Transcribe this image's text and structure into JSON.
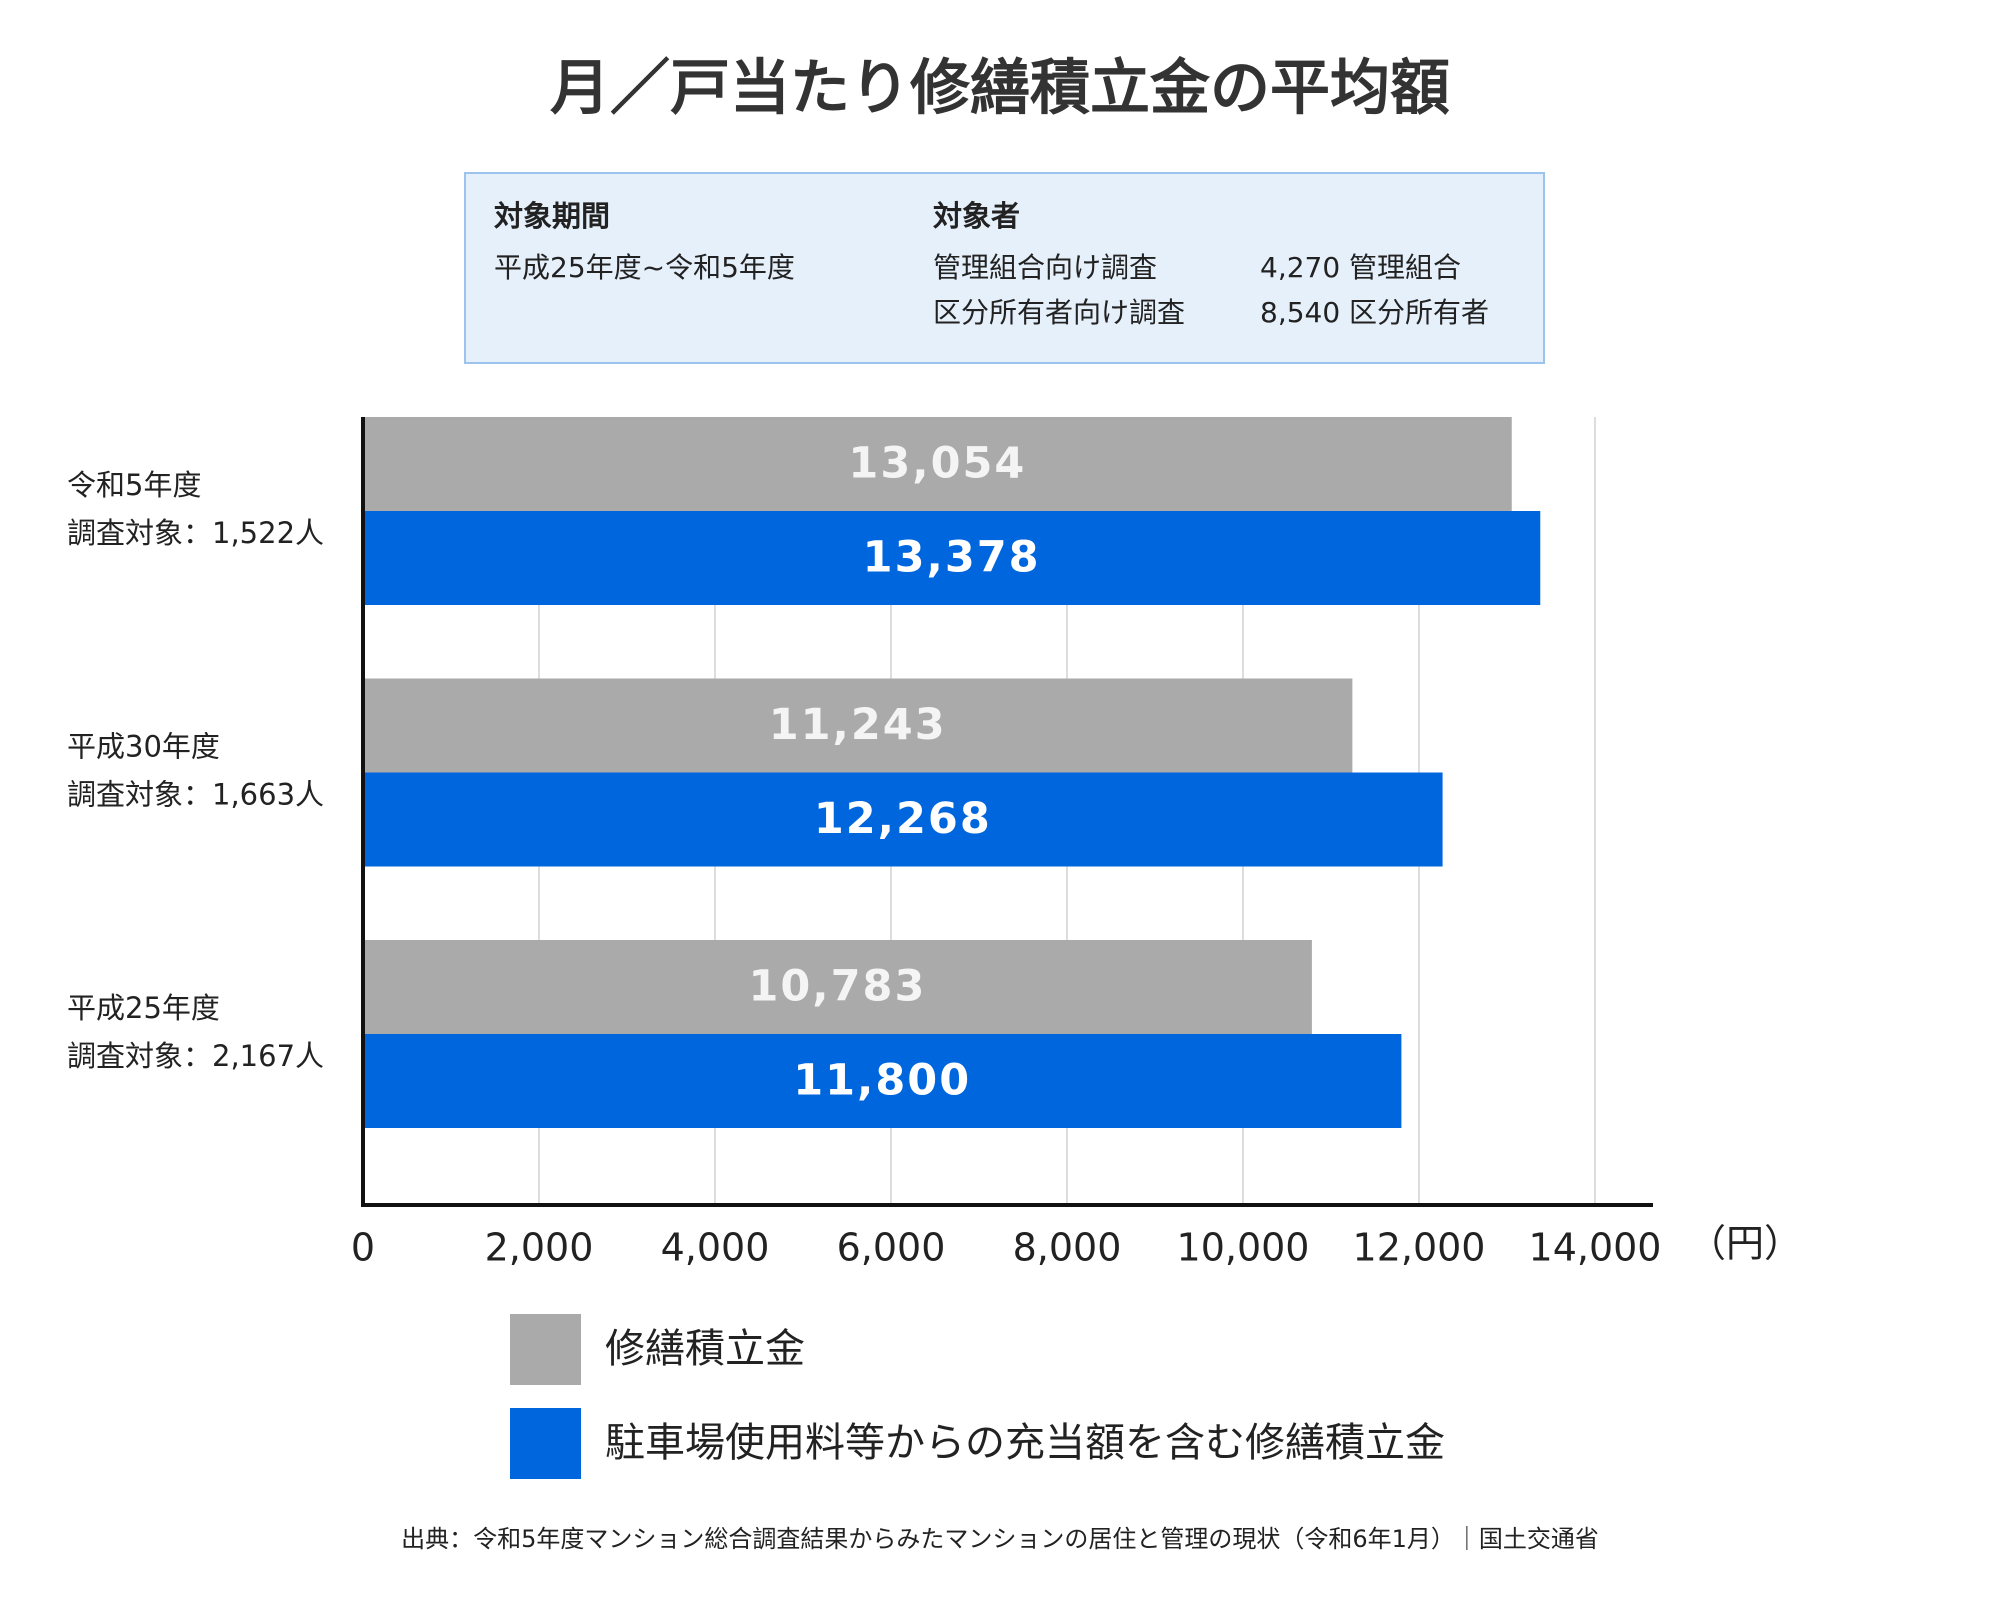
{
  "chart_data": {
    "type": "hbar",
    "title": "月／戸当たり修繕積立金の平均額",
    "info_box": {
      "period_heading": "対象期間",
      "period": "平成25年度~令和5年度",
      "target_heading": "対象者",
      "targets": [
        {
          "survey": "管理組合向け調査",
          "count": "4,270 管理組合"
        },
        {
          "survey": "区分所有者向け調査",
          "count": "8,540 区分所有者"
        }
      ]
    },
    "categories": [
      "令和5年度",
      "平成30年度",
      "平成25年度"
    ],
    "category_notes": [
      "調査対象：1,522人",
      "調査対象：1,663人",
      "調査対象：2,167人"
    ],
    "series": [
      {
        "name": "修繕積立金",
        "color": "#aaaaaa",
        "values": [
          13054,
          11243,
          10783
        ],
        "value_labels": [
          "13,054",
          "11,243",
          "10,783"
        ]
      },
      {
        "name": "駐車場使用料等からの充当額を含む修繕積立金",
        "color": "#0066dd",
        "values": [
          13378,
          12268,
          11800
        ],
        "value_labels": [
          "13,378",
          "12,268",
          "11,800"
        ]
      }
    ],
    "xlim": [
      0,
      14000
    ],
    "xticks": [
      0,
      {
        "value": 2000,
        "label": "2,000"
      },
      {
        "value": 4000,
        "label": "4,000"
      },
      {
        "value": 6000,
        "label": "6,000"
      },
      {
        "value": 8000,
        "label": "8,000"
      },
      {
        "value": 10000,
        "label": "10,000"
      },
      {
        "value": 12000,
        "label": "12,000"
      },
      {
        "value": 14000,
        "label": "14,000"
      }
    ],
    "x_unit": "（円）",
    "grid": true,
    "source": "出典：令和5年度マンション総合調査結果からみたマンションの居住と管理の現状（令和6年1月）｜国土交通省"
  }
}
